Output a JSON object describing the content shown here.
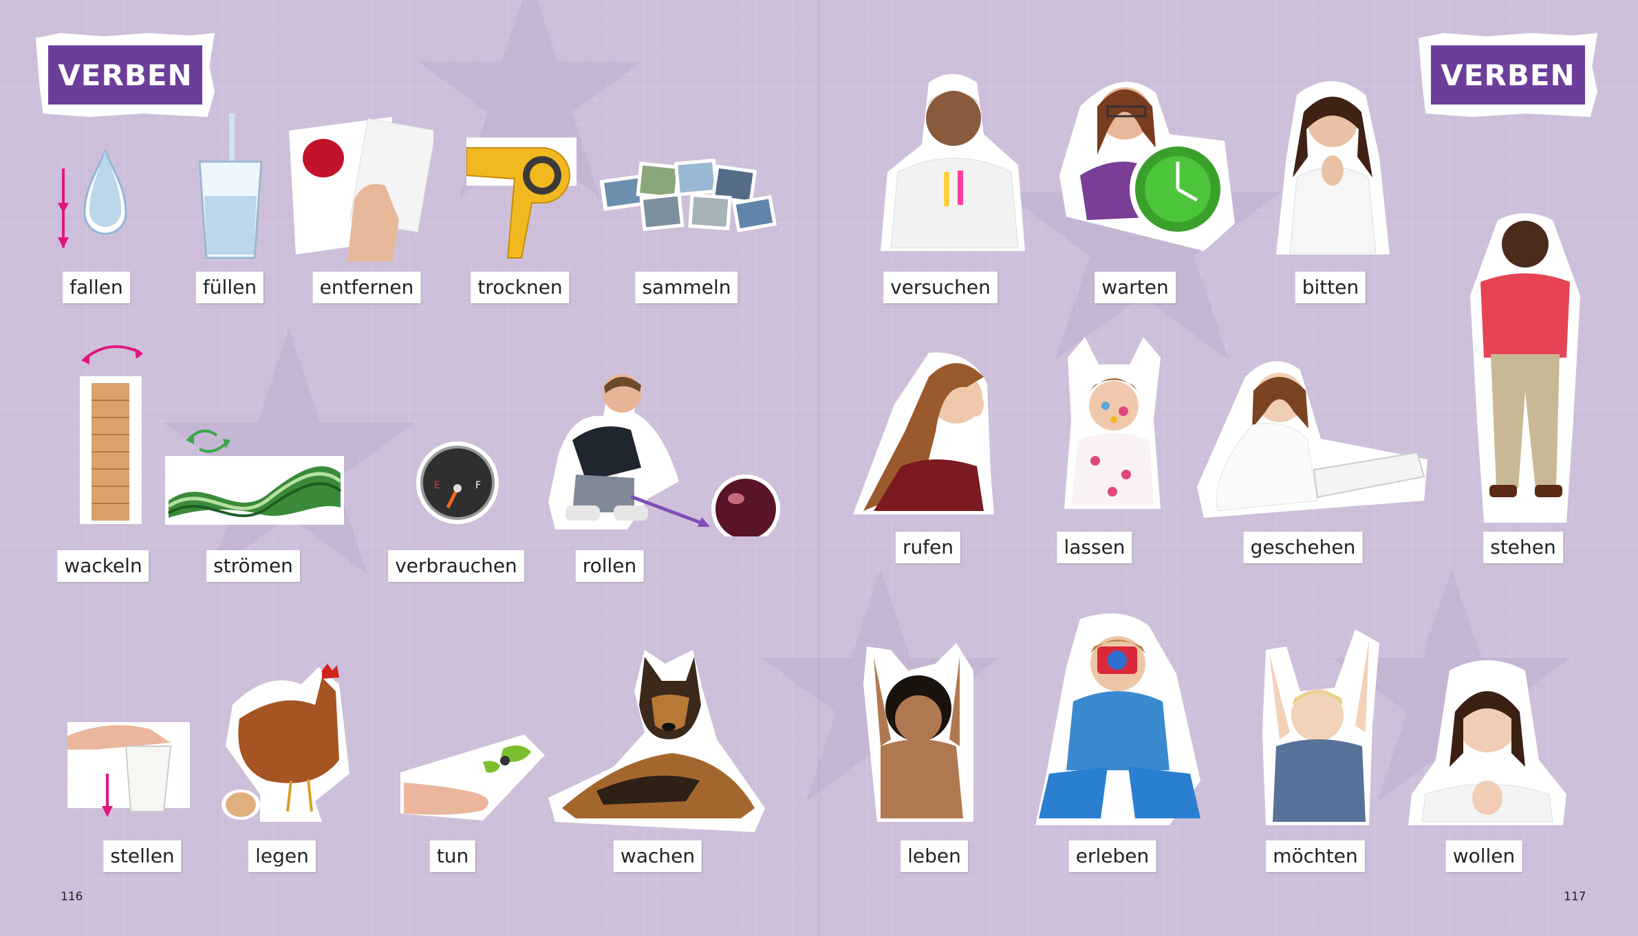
{
  "left_page": {
    "header": "VERBEN",
    "page_number": "116",
    "row1": [
      "fallen",
      "füllen",
      "entfernen",
      "trocknen",
      "sammeln"
    ],
    "row2": [
      "wackeln",
      "strömen",
      "verbrauchen",
      "rollen"
    ],
    "row3": [
      "stellen",
      "legen",
      "tun",
      "wachen"
    ]
  },
  "right_page": {
    "header": "VERBEN",
    "page_number": "117",
    "row1": [
      "versuchen",
      "warten",
      "bitten"
    ],
    "row2": [
      "rufen",
      "lassen",
      "geschehen",
      "stehen"
    ],
    "row3": [
      "leben",
      "erleben",
      "möchten",
      "wollen"
    ]
  },
  "colors": {
    "background": "#cdbfd9",
    "header": "#6b3e9a",
    "arrow_pink": "#e0157f",
    "arrow_green": "#3aa64a",
    "arrow_purple": "#7d4fb6"
  }
}
